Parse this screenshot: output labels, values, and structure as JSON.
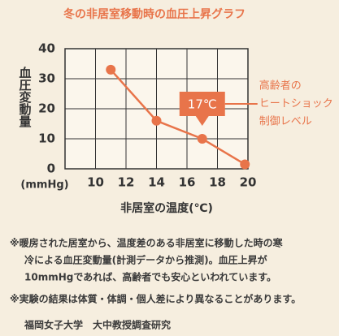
{
  "chart_data": {
    "type": "line",
    "title": "冬の非居室移動時の血圧上昇グラフ",
    "ylabel": "血圧変動量",
    "yunit": "(mmHg)",
    "xlabel": "非居室の温度(℃)",
    "x": [
      11,
      14,
      17,
      19.8
    ],
    "series": [
      {
        "name": "血圧変動量",
        "color": "#e8744a",
        "values": [
          33,
          16,
          10,
          1.5
        ]
      }
    ],
    "xlim": [
      8,
      20
    ],
    "xticks": [
      10,
      12,
      14,
      16,
      18,
      20
    ],
    "ylim": [
      0,
      40
    ],
    "yticks": [
      0,
      10,
      20,
      30,
      40
    ],
    "grid": true,
    "annotation": {
      "label": "17℃",
      "text": [
        "高齢者の",
        "ヒートショック",
        "制御レベル"
      ]
    }
  },
  "notes": [
    [
      "※暖房された居室から、温度差のある非居室に移動した時の寒",
      "冷による血圧変動量(計測データから推測)。血圧上昇が",
      "10mmHgであれば、高齢者でも安心といわれています。"
    ],
    [
      "※実験の結果は体質・体調・個人差により異なることがあります。"
    ]
  ],
  "source": "福岡女子大学　大中教授調査研究"
}
